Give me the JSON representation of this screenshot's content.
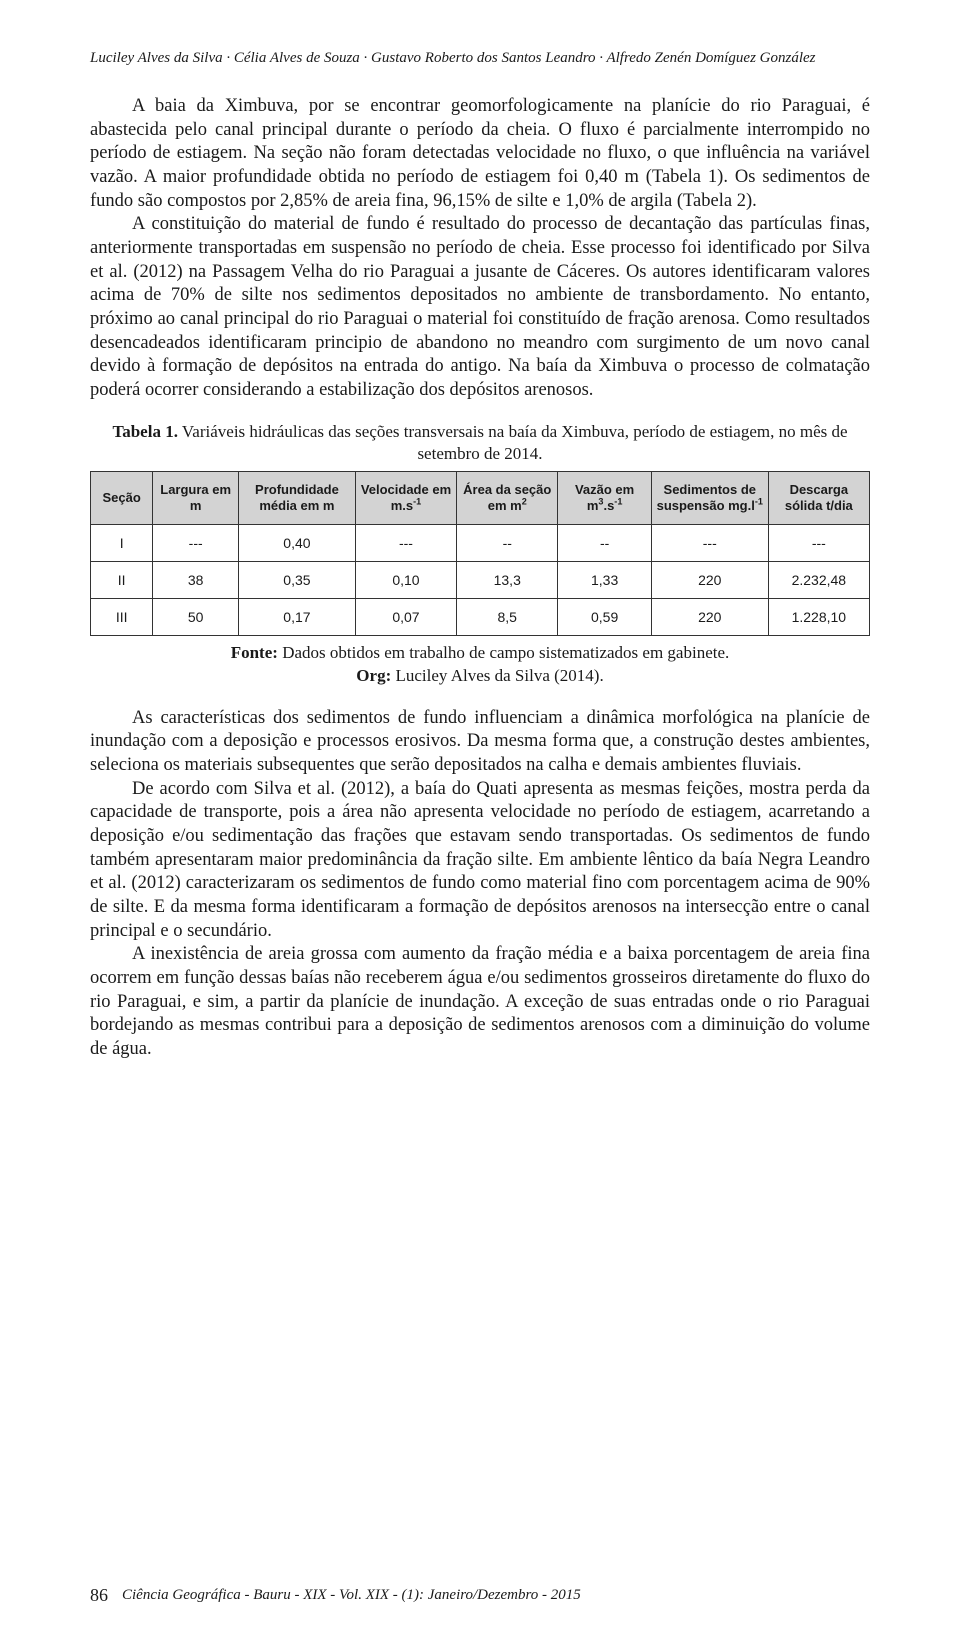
{
  "running_head": "Luciley Alves da Silva · Célia Alves de Souza · Gustavo Roberto dos Santos Leandro · Alfredo Zenén Domíguez González",
  "paragraphs": {
    "p1": "A baia da Ximbuva, por se encontrar geomorfologicamente na planície do rio Paraguai, é abastecida pelo canal principal durante o período da cheia. O fluxo é parcialmente interrompido no período de estiagem. Na seção não foram detectadas velocidade no fluxo, o que influência na variável vazão. A maior profundidade obtida no período de estiagem foi 0,40 m (Tabela 1). Os sedimentos de fundo são compostos por 2,85% de areia fina, 96,15% de silte e 1,0% de argila (Tabela 2).",
    "p2": "A constituição do material de fundo é resultado do processo de decantação das partículas finas, anteriormente transportadas em suspensão no período de cheia. Esse processo foi identificado por Silva et al. (2012) na Passagem Velha do rio Paraguai a jusante de Cáceres. Os autores identificaram valores acima de 70% de silte nos sedimentos depositados no ambiente de transbordamento. No entanto, próximo ao canal principal do rio Paraguai o material foi constituído de fração arenosa. Como resultados desencadeados identificaram principio de abandono no meandro com surgimento de um novo canal devido à formação de depósitos na entrada do antigo. Na baía da Ximbuva o processo de colmatação poderá ocorrer considerando a estabilização dos depósitos arenosos.",
    "p3": "As características dos sedimentos de fundo influenciam a dinâmica morfológica na planície de inundação com a deposição e processos erosivos. Da mesma forma que, a construção destes ambientes, seleciona os materiais subsequentes que serão depositados na calha e demais ambientes fluviais.",
    "p4": "De acordo com Silva et al. (2012), a baía do Quati apresenta as mesmas feições, mostra perda da capacidade de transporte, pois a área não apresenta velocidade no período de estiagem, acarretando a deposição e/ou sedimentação das frações que estavam sendo transportadas. Os sedimentos de fundo também apresentaram maior predominância da fração silte. Em ambiente lêntico da baía Negra Leandro et al. (2012) caracterizaram os sedimentos de fundo como material fino com porcentagem acima de 90% de silte. E da mesma forma identificaram a formação de depósitos arenosos na intersecção entre o canal principal e o secundário.",
    "p5": "A inexistência de areia grossa com aumento da fração média e a baixa porcentagem de areia fina ocorrem em função dessas baías não receberem água e/ou sedimentos grosseiros diretamente do fluxo do rio Paraguai, e sim, a partir da planície de inundação. A exceção de suas entradas onde o rio Paraguai bordejando as mesmas contribui para a deposição de sedimentos arenosos com a diminuição do volume de água."
  },
  "table": {
    "caption_bold": "Tabela 1.",
    "caption_rest": " Variáveis hidráulicas das seções transversais na baía da Ximbuva, período de estiagem, no mês de setembro de 2014.",
    "columns": [
      "Seção",
      "Largura em m",
      "Profundidade média em m",
      "Velocidade em m.s⁻¹",
      "Área da seção em m²",
      "Vazão em m³.s⁻¹",
      "Sedimentos de suspensão mg.l⁻¹",
      "Descarga sólida t/dia"
    ],
    "col_widths_pct": [
      8,
      11,
      15,
      13,
      13,
      12,
      15,
      13
    ],
    "header_bg": "#d3d3d3",
    "border_color": "#333333",
    "rows": [
      [
        "I",
        "---",
        "0,40",
        "---",
        "--",
        "--",
        "---",
        "---"
      ],
      [
        "II",
        "38",
        "0,35",
        "0,10",
        "13,3",
        "1,33",
        "220",
        "2.232,48"
      ],
      [
        "III",
        "50",
        "0,17",
        "0,07",
        "8,5",
        "0,59",
        "220",
        "1.228,10"
      ]
    ],
    "source_bold1": "Fonte:",
    "source_rest1": " Dados obtidos em trabalho de campo sistematizados em gabinete.",
    "source_bold2": "Org:",
    "source_rest2": " Luciley Alves da Silva (2014)."
  },
  "footer": {
    "page_no": "86",
    "publication": "Ciência Geográfica - Bauru - XIX - Vol. XIX - (1): Janeiro/Dezembro - 2015"
  }
}
